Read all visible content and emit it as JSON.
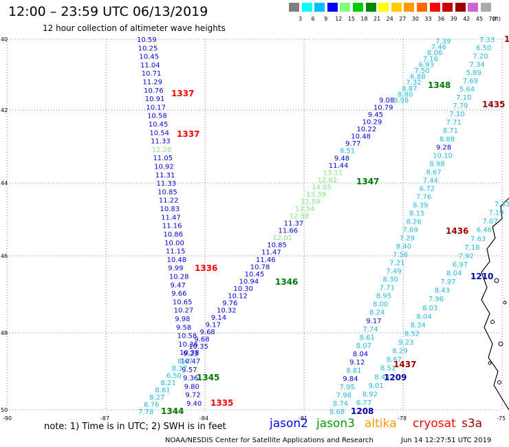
{
  "title": "12:00 – 23:59 UTC 06/13/2019",
  "subtitle": "12 hour collection of altimeter wave heights",
  "scale": {
    "labels": [
      "3",
      "6",
      "9",
      "12",
      "15",
      "18",
      "21",
      "24",
      "27",
      "30",
      "33",
      "36",
      "39",
      "42",
      "45",
      "70",
      "(ft)"
    ],
    "colors": [
      "#7f7f7f",
      "#00ffff",
      "#00bfff",
      "#0000ff",
      "#7fff7f",
      "#00cc00",
      "#008800",
      "#ffff00",
      "#ffcc00",
      "#ff9900",
      "#ff6600",
      "#ff0000",
      "#cc0000",
      "#990000",
      "#cc66cc",
      "#aaaaaa"
    ]
  },
  "colors": {
    "c1": "#1fb8e8",
    "c2": "#0000dd",
    "c3": "#7fe87f",
    "c4": "#007700",
    "red": "#ff0000",
    "darkred": "#990000",
    "navy": "#0000aa"
  },
  "note": "note: 1) Time is in UTC; 2) SWH is in feet",
  "legend": [
    {
      "label": "jason2",
      "color": "#0000ff"
    },
    {
      "label": "jason3",
      "color": "#009900"
    },
    {
      "label": "altika",
      "color": "#ff9900"
    },
    {
      "label": "cryosat",
      "color": "#ff0000"
    },
    {
      "label": "s3a",
      "color": "#990000"
    }
  ],
  "footer": "NOAA/NESDIS Center for Satellite Applications and Research",
  "footer_time": "Jun 14 12:27:51 UTC 2019",
  "map": {
    "lon_labels": [
      "-90",
      "-87",
      "-84",
      "-81",
      "-78",
      "-75"
    ],
    "lat_labels": [
      "40",
      "42",
      "44",
      "46",
      "48",
      "50"
    ],
    "lat_labels_bottom": "-50",
    "track_times": [
      {
        "text": "1337",
        "color": "red"
      },
      {
        "text": "1337",
        "color": "red"
      },
      {
        "text": "1348",
        "color": "c4"
      },
      {
        "text": "1435",
        "color": "darkred"
      },
      {
        "text": "1347",
        "color": "c4"
      },
      {
        "text": "1436",
        "color": "darkred"
      },
      {
        "text": "1336",
        "color": "red"
      },
      {
        "text": "1346",
        "color": "c4"
      },
      {
        "text": "1210",
        "color": "navy"
      },
      {
        "text": "1437",
        "color": "darkred"
      },
      {
        "text": "1345",
        "color": "c4"
      },
      {
        "text": "1209",
        "color": "navy"
      },
      {
        "text": "1335",
        "color": "red"
      },
      {
        "text": "1344",
        "color": "c4"
      },
      {
        "text": "1208",
        "color": "navy"
      }
    ],
    "track_a": [
      [
        "10.59",
        "c2"
      ],
      [
        "10.25",
        "c2"
      ],
      [
        "10.45",
        "c2"
      ],
      [
        "11.04",
        "c2"
      ],
      [
        "10.71",
        "c2"
      ],
      [
        "11.29",
        "c2"
      ],
      [
        "10.76",
        "c2"
      ],
      [
        "10.91",
        "c2"
      ],
      [
        "10.17",
        "c2"
      ],
      [
        "10.58",
        "c2"
      ],
      [
        "10.45",
        "c2"
      ],
      [
        "10.54",
        "c2"
      ],
      [
        "11.33",
        "c2"
      ],
      [
        "12.28",
        "c3"
      ],
      [
        "11.05",
        "c2"
      ],
      [
        "10.92",
        "c2"
      ],
      [
        "11.31",
        "c2"
      ],
      [
        "11.33",
        "c2"
      ],
      [
        "10.85",
        "c2"
      ],
      [
        "11.22",
        "c2"
      ],
      [
        "10.83",
        "c2"
      ],
      [
        "11.47",
        "c2"
      ],
      [
        "11.16",
        "c2"
      ],
      [
        "10.86",
        "c2"
      ],
      [
        "10.00",
        "c2"
      ],
      [
        "11.15",
        "c2"
      ],
      [
        "10.48",
        "c2"
      ],
      [
        "9.99",
        "c2"
      ],
      [
        "10.28",
        "c2"
      ],
      [
        "9.47",
        "c2"
      ],
      [
        "9.66",
        "c2"
      ],
      [
        "10.65",
        "c2"
      ],
      [
        "10.27",
        "c2"
      ],
      [
        "9.98",
        "c2"
      ],
      [
        "9.58",
        "c2"
      ],
      [
        "10.58",
        "c2"
      ],
      [
        "10.36",
        "c2"
      ],
      [
        "10.38",
        "c2"
      ],
      [
        "10.47",
        "c2"
      ],
      [
        "9.57",
        "c2"
      ],
      [
        "9.36",
        "c2"
      ],
      [
        "9.80",
        "c2"
      ],
      [
        "9.72",
        "c2"
      ],
      [
        "9.40",
        "c2"
      ]
    ],
    "track_b": [
      [
        "9.08",
        "c2"
      ],
      [
        "10.79",
        "c2"
      ],
      [
        "9.45",
        "c2"
      ],
      [
        "10.29",
        "c2"
      ],
      [
        "10.22",
        "c2"
      ],
      [
        "10.48",
        "c2"
      ],
      [
        "9.77",
        "c2"
      ],
      [
        "8.51",
        "c1"
      ],
      [
        "9.48",
        "c2"
      ],
      [
        "11.44",
        "c2"
      ],
      [
        "13.11",
        "c3"
      ],
      [
        "12.62",
        "c3"
      ],
      [
        "14.05",
        "c3"
      ],
      [
        "13.39",
        "c3"
      ],
      [
        "12.59",
        "c3"
      ],
      [
        "13.54",
        "c3"
      ],
      [
        "12.58",
        "c3"
      ],
      [
        "11.37",
        "c2"
      ],
      [
        "11.66",
        "c2"
      ],
      [
        "12.01",
        "c3"
      ],
      [
        "10.85",
        "c2"
      ],
      [
        "11.47",
        "c2"
      ],
      [
        "11.46",
        "c2"
      ],
      [
        "10.78",
        "c2"
      ],
      [
        "10.45",
        "c2"
      ],
      [
        "10.94",
        "c2"
      ],
      [
        "10.30",
        "c2"
      ],
      [
        "10.12",
        "c2"
      ],
      [
        "9.76",
        "c2"
      ],
      [
        "10.32",
        "c2"
      ],
      [
        "9.14",
        "c2"
      ],
      [
        "9.17",
        "c2"
      ],
      [
        "9.68",
        "c2"
      ],
      [
        "9.68",
        "c2"
      ],
      [
        "10.35",
        "c2"
      ],
      [
        "9.23",
        "c2"
      ],
      [
        "8.47",
        "c1"
      ],
      [
        "8.37",
        "c1"
      ],
      [
        "6.50",
        "c1"
      ],
      [
        "8.21",
        "c1"
      ],
      [
        "8.61",
        "c1"
      ],
      [
        "8.27",
        "c1"
      ],
      [
        "8.76",
        "c1"
      ],
      [
        "7.78",
        "c1"
      ]
    ],
    "track_c": [
      [
        "7.39",
        "c1"
      ],
      [
        "7.46",
        "c1"
      ],
      [
        "8.06",
        "c1"
      ],
      [
        "7.16",
        "c1"
      ],
      [
        "6.93",
        "c1"
      ],
      [
        "7.50",
        "c1"
      ],
      [
        "6.88",
        "c1"
      ],
      [
        "7.32",
        "c1"
      ],
      [
        "8.87",
        "c1"
      ],
      [
        "8.80",
        "c1"
      ],
      [
        "8.98",
        "c1"
      ]
    ],
    "track_d": [
      [
        "7.33",
        "c1"
      ],
      [
        "6.50",
        "c1"
      ],
      [
        "7.20",
        "c1"
      ],
      [
        "7.34",
        "c1"
      ],
      [
        "5.89",
        "c1"
      ],
      [
        "7.69",
        "c1"
      ],
      [
        "5.64",
        "c1"
      ],
      [
        "7.10",
        "c1"
      ],
      [
        "7.79",
        "c1"
      ],
      [
        "7.10",
        "c1"
      ],
      [
        "7.71",
        "c1"
      ],
      [
        "8.71",
        "c1"
      ],
      [
        "8.88",
        "c1"
      ],
      [
        "9.28",
        "c2"
      ],
      [
        "10.10",
        "c1"
      ],
      [
        "8.98",
        "c1"
      ],
      [
        "8.67",
        "c1"
      ],
      [
        "7.44",
        "c1"
      ],
      [
        "6.72",
        "c1"
      ],
      [
        "7.76",
        "c1"
      ],
      [
        "8.39",
        "c1"
      ],
      [
        "8.15",
        "c1"
      ],
      [
        "8.26",
        "c1"
      ],
      [
        "7.69",
        "c1"
      ],
      [
        "7.29",
        "c1"
      ],
      [
        "8.40",
        "c1"
      ],
      [
        "7.56",
        "c1"
      ],
      [
        "7.21",
        "c1"
      ],
      [
        "7.49",
        "c1"
      ],
      [
        "8.30",
        "c1"
      ],
      [
        "7.71",
        "c1"
      ],
      [
        "8.95",
        "c1"
      ],
      [
        "8.00",
        "c1"
      ],
      [
        "8.24",
        "c1"
      ],
      [
        "9.17",
        "c2"
      ],
      [
        "7.74",
        "c1"
      ],
      [
        "8.61",
        "c1"
      ],
      [
        "8.07",
        "c1"
      ],
      [
        "8.04",
        "c2"
      ],
      [
        "9.12",
        "c2"
      ],
      [
        "8.81",
        "c1"
      ],
      [
        "9.84",
        "c2"
      ],
      [
        "7.95",
        "c1"
      ],
      [
        "7.98",
        "c1"
      ],
      [
        "8.74",
        "c1"
      ],
      [
        "8.68",
        "c1"
      ]
    ],
    "track_e": [
      [
        "7.33",
        "c1"
      ],
      [
        "7.19",
        "c1"
      ],
      [
        "7.07",
        "c1"
      ],
      [
        "6.46",
        "c1"
      ],
      [
        "7.63",
        "c1"
      ],
      [
        "7.18",
        "c1"
      ],
      [
        "7.92",
        "c1"
      ],
      [
        "6.97",
        "c1"
      ],
      [
        "8.04",
        "c1"
      ],
      [
        "7.97",
        "c1"
      ],
      [
        "8.43",
        "c1"
      ],
      [
        "7.96",
        "c1"
      ],
      [
        "8.03",
        "c1"
      ],
      [
        "8.04",
        "c1"
      ],
      [
        "8.34",
        "c1"
      ],
      [
        "8.52",
        "c1"
      ],
      [
        "9.23",
        "c1"
      ],
      [
        "8.29",
        "c1"
      ],
      [
        "8.67",
        "c1"
      ],
      [
        "8.51",
        "c1"
      ],
      [
        "8.44",
        "c1"
      ],
      [
        "9.01",
        "c1"
      ],
      [
        "8.92",
        "c1"
      ],
      [
        "6.77",
        "c1"
      ]
    ]
  }
}
